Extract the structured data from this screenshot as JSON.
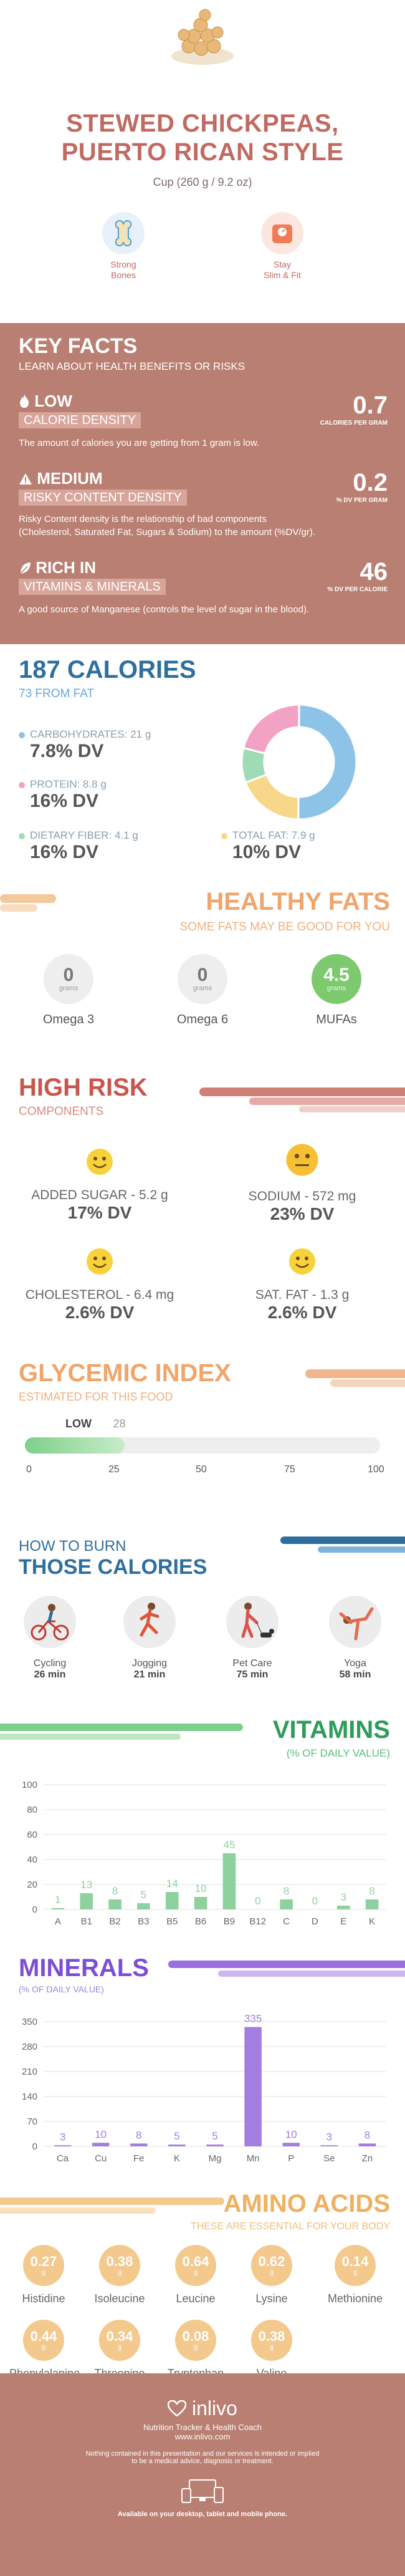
{
  "header": {
    "title_line1": "STEWED CHICKPEAS,",
    "title_line2": "PUERTO RICAN STYLE",
    "serving": "Cup (260 g / 9.2 oz)",
    "badges": [
      {
        "label_1": "Strong",
        "label_2": "Bones",
        "icon": "bone-icon",
        "color": "#4f9fd6"
      },
      {
        "label_1": "Stay",
        "label_2": "Slim & Fit",
        "icon": "scale-icon",
        "color": "#f07b58"
      }
    ]
  },
  "key_facts": {
    "title": "KEY FACTS",
    "subtitle": "LEARN ABOUT HEALTH BENEFITS OR RISKS",
    "facts": [
      {
        "level": "LOW",
        "label": "CALORIE DENSITY",
        "desc": "The amount of calories you are getting from 1 gram is low.",
        "value": "0.7",
        "unit": "CALORIES PER GRAM",
        "icon": "flame-icon"
      },
      {
        "level": "MEDIUM",
        "label": "RISKY CONTENT DENSITY",
        "desc_1": "Risky Content density is the relationship of bad components",
        "desc_2": "(Cholesterol, Saturated Fat, Sugars & Sodium) to the amount (%DV/gr).",
        "value": "0.2",
        "unit": "% DV PER GRAM",
        "icon": "warning-icon"
      },
      {
        "level": "RICH IN",
        "label": "VITAMINS & MINERALS",
        "desc": "A good source of Manganese (controls the level of sugar in the blood).",
        "value": "46",
        "unit": "% DV PER CALORIE",
        "icon": "leaf-icon"
      }
    ]
  },
  "calories": {
    "title": "187 CALORIES",
    "subtitle": "73 FROM FAT",
    "macros": [
      {
        "label": "CARBOHYDRATES: 21 g",
        "dv": "7.8% DV",
        "color": "#8ec3e8"
      },
      {
        "label": "PROTEIN: 8.8 g",
        "dv": "16% DV",
        "color": "#f2a2c4"
      },
      {
        "label": "DIETARY FIBER: 4.1 g",
        "dv": "16% DV",
        "color": "#9fdcb5"
      },
      {
        "label": "TOTAL FAT: 7.9 g",
        "dv": "10% DV",
        "color": "#f7d88a"
      }
    ],
    "donut": [
      {
        "name": "carbohydrates",
        "value": 21,
        "color": "#8ec3e8"
      },
      {
        "name": "total fat",
        "value": 7.9,
        "color": "#f7d88a"
      },
      {
        "name": "dietary fiber",
        "value": 4.1,
        "color": "#9fdcb5"
      },
      {
        "name": "protein",
        "value": 8.8,
        "color": "#f2a2c4"
      }
    ]
  },
  "healthy_fats": {
    "title": "HEALTHY FATS",
    "subtitle": "SOME FATS MAY BE GOOD FOR YOU",
    "items": [
      {
        "value": "0",
        "unit": "grams",
        "label": "Omega 3"
      },
      {
        "value": "0",
        "unit": "grams",
        "label": "Omega 6"
      },
      {
        "value": "4.5",
        "unit": "grams",
        "label": "MUFAs"
      }
    ]
  },
  "high_risk": {
    "title": "HIGH RISK",
    "subtitle": "COMPONENTS",
    "items": [
      {
        "label": "ADDED SUGAR - 5.2 g",
        "dv": "17% DV"
      },
      {
        "label": "SODIUM - 572 mg",
        "dv": "23% DV"
      },
      {
        "label": "CHOLESTEROL - 6.4 mg",
        "dv": "2.6% DV"
      },
      {
        "label": "SAT. FAT - 1.3 g",
        "dv": "2.6% DV"
      }
    ]
  },
  "glycemic": {
    "title": "GLYCEMIC INDEX",
    "subtitle": "ESTIMATED FOR THIS FOOD",
    "level": "LOW",
    "value": 28,
    "value_label": "28",
    "ticks": [
      "0",
      "25",
      "50",
      "75",
      "100"
    ]
  },
  "burn": {
    "title_1": "HOW TO BURN",
    "title_2": "THOSE CALORIES",
    "items": [
      {
        "label": "Cycling",
        "time": "26 min",
        "icon": "cycling-icon"
      },
      {
        "label": "Jogging",
        "time": "21 min",
        "icon": "jogging-icon"
      },
      {
        "label": "Pet Care",
        "time": "75 min",
        "icon": "dog-walking-icon"
      },
      {
        "label": "Yoga",
        "time": "58 min",
        "icon": "yoga-icon"
      }
    ]
  },
  "vitamins": {
    "title": "VITAMINS",
    "subtitle": "(% OF DAILY VALUE)",
    "chart_data": {
      "type": "bar",
      "categories": [
        "A",
        "B1",
        "B2",
        "B3",
        "B5",
        "B6",
        "B9",
        "B12",
        "C",
        "D",
        "E",
        "K"
      ],
      "values": [
        1,
        13,
        8,
        5,
        14,
        10,
        45,
        0,
        8,
        0,
        3,
        8
      ],
      "labels": [
        "1",
        "13",
        "8",
        "5",
        "14",
        "10",
        "45",
        "0",
        "8",
        "0",
        "3",
        "8"
      ],
      "yticks": [
        "0",
        "20",
        "40",
        "60",
        "80",
        "100"
      ],
      "ylim": [
        0,
        100
      ],
      "color": "#8fd19e",
      "grid": true
    }
  },
  "minerals": {
    "title": "MINERALS",
    "subtitle": "(% OF DAILY VALUE)",
    "chart_data": {
      "type": "bar",
      "categories": [
        "Ca",
        "Cu",
        "Fe",
        "K",
        "Mg",
        "Mn",
        "P",
        "Se",
        "Zn"
      ],
      "values": [
        3,
        10,
        8,
        5,
        5,
        335,
        10,
        3,
        8
      ],
      "labels": [
        "3",
        "10",
        "8",
        "5",
        "5",
        "335",
        "10",
        "3",
        "8"
      ],
      "yticks": [
        "0",
        "70",
        "140",
        "210",
        "280",
        "350"
      ],
      "ylim": [
        0,
        350
      ],
      "color": "#a37de0",
      "grid": true
    }
  },
  "amino": {
    "title": "AMINO ACIDS",
    "subtitle": "THESE ARE ESSENTIAL FOR YOUR BODY",
    "unit": "g",
    "items": [
      {
        "value": "0.27",
        "name": "Histidine"
      },
      {
        "value": "0.38",
        "name": "Isoleucine"
      },
      {
        "value": "0.64",
        "name": "Leucine"
      },
      {
        "value": "0.62",
        "name": "Lysine"
      },
      {
        "value": "0.14",
        "name": "Methionine"
      },
      {
        "value": "0.44",
        "name": "Phenylalanine"
      },
      {
        "value": "0.34",
        "name": "Threonine"
      },
      {
        "value": "0.08",
        "name": "Tryptophan"
      },
      {
        "value": "0.38",
        "name": "Valine"
      }
    ]
  },
  "footer": {
    "brand": "inlivo",
    "tagline": "Nutrition Tracker & Health Coach",
    "url": "www.inlivo.com",
    "disclaimer_1": "Nothing contained in this presentation and our services is intended or implied",
    "disclaimer_2": "to be a medical advice, diagnosis or treatment.",
    "available": "Available on your desktop, tablet and mobile phone."
  }
}
